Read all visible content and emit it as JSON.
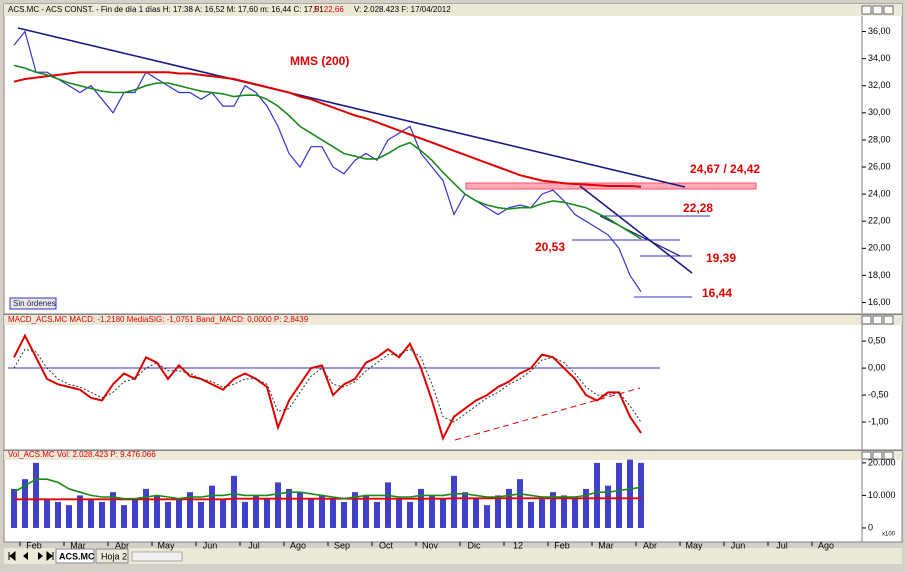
{
  "header": {
    "symbol_info": "ACS.MC - ACS CONST. - Fin de día 1 días  H: 17:38  A: 16,52  M: 17,60  m: 16,44  C: 17,51",
    "prev": "P: 22,66",
    "volume_date": "V: 2.028.423  F: 17/04/2012"
  },
  "chart_data": [
    {
      "type": "line",
      "title": "MMS (200)",
      "annotations": [
        "24,67 / 24,42",
        "22,28",
        "20,53",
        "19,39",
        "16,44"
      ],
      "ylim": [
        15.3,
        37
      ],
      "yticks": [
        {
          "value": 16,
          "label": "16,00"
        },
        {
          "value": 18,
          "label": "18,00"
        },
        {
          "value": 20,
          "label": "20,00"
        },
        {
          "value": 22,
          "label": "22,00"
        },
        {
          "value": 24,
          "label": "24,00"
        },
        {
          "value": 26,
          "label": "26,00"
        },
        {
          "value": 28,
          "label": "28,00"
        },
        {
          "value": 30,
          "label": "30,00"
        },
        {
          "value": 32,
          "label": "32,00"
        },
        {
          "value": 34,
          "label": "34,00"
        },
        {
          "value": 36,
          "label": "36,00"
        }
      ],
      "series": [
        {
          "color": "#3333cc",
          "width": 1.2,
          "values": [
            35,
            36,
            33,
            33,
            32.5,
            32,
            31.5,
            32,
            31,
            30,
            31.5,
            31.5,
            33,
            32.5,
            32,
            31.5,
            31.5,
            31,
            31.5,
            30.5,
            30.5,
            32,
            31.5,
            30.5,
            29,
            27,
            26,
            27.5,
            27.5,
            26,
            25.5,
            26.5,
            27,
            26.5,
            28,
            28.5,
            29,
            27,
            26,
            25,
            22.5,
            24,
            23.5,
            23,
            22.5,
            23,
            23.2,
            23,
            24,
            24.3,
            23.5,
            22.5,
            22,
            21.5,
            21,
            20,
            18,
            16.8
          ]
        },
        {
          "color": "#e00000",
          "width": 2,
          "values": [
            32.3,
            32.5,
            32.6,
            32.7,
            32.8,
            32.9,
            33,
            33,
            33,
            33,
            33,
            33,
            33,
            33,
            33,
            32.9,
            32.9,
            32.8,
            32.7,
            32.6,
            32.5,
            32.3,
            32.1,
            31.9,
            31.7,
            31.5,
            31.2,
            31,
            30.7,
            30.4,
            30.1,
            29.8,
            29.6,
            29.3,
            29,
            28.7,
            28.4,
            28.1,
            27.8,
            27.5,
            27.2,
            26.9,
            26.6,
            26.3,
            26,
            25.7,
            25.4,
            25.2,
            25,
            24.9,
            24.8,
            24.75,
            24.7,
            24.65,
            24.6,
            24.6,
            24.6,
            24.55
          ]
        },
        {
          "color": "#1a8a1a",
          "width": 1.6,
          "values": [
            33.5,
            33.3,
            33,
            32.8,
            32.5,
            32.2,
            32,
            31.8,
            31.6,
            31.5,
            31.5,
            31.7,
            32,
            32.2,
            32.2,
            32,
            31.8,
            31.6,
            31.5,
            31.4,
            31.2,
            31.3,
            31.3,
            31,
            30.5,
            29.8,
            29,
            28.5,
            28,
            27.5,
            27,
            26.8,
            26.6,
            26.6,
            27,
            27.5,
            27.8,
            27.2,
            26.5,
            25.6,
            24.8,
            24,
            23.5,
            23.2,
            23,
            22.9,
            23,
            23,
            23.3,
            23.5,
            23.4,
            23.2,
            23,
            22.6,
            22.2,
            21.7,
            21.2,
            20.7
          ]
        }
      ]
    },
    {
      "type": "line",
      "title": "MACD_ACS.MC  MACD: -1,2180  MediaSIG: -1,0751  Band_MACD: 0,0000  P: 2,8439",
      "ylim": [
        -1.48,
        0.78
      ],
      "yticks": [
        {
          "value": 0.5,
          "label": "0,50"
        },
        {
          "value": 0,
          "label": "0,00"
        },
        {
          "value": -0.5,
          "label": "-0,50"
        },
        {
          "value": -1,
          "label": "-1,00"
        }
      ],
      "series": [
        {
          "color": "#e00000",
          "width": 2,
          "values": [
            0.2,
            0.6,
            0.2,
            -0.2,
            -0.3,
            -0.35,
            -0.4,
            -0.55,
            -0.6,
            -0.3,
            -0.1,
            -0.2,
            0.2,
            0.1,
            -0.2,
            0.05,
            -0.15,
            -0.2,
            -0.3,
            -0.4,
            -0.2,
            -0.1,
            -0.2,
            -0.35,
            -1.1,
            -0.6,
            -0.3,
            0,
            0.05,
            -0.5,
            -0.3,
            -0.2,
            0.1,
            0.2,
            0.35,
            0.2,
            0.45,
            0,
            -0.6,
            -1.3,
            -0.9,
            -0.75,
            -0.6,
            -0.5,
            -0.35,
            -0.25,
            -0.1,
            0,
            0.25,
            0.2,
            0,
            -0.2,
            -0.5,
            -0.6,
            -0.45,
            -0.45,
            -0.9,
            -1.2
          ]
        },
        {
          "color": "#333333",
          "width": 1,
          "dash": true,
          "values": [
            0,
            0.35,
            0.3,
            0,
            -0.2,
            -0.3,
            -0.35,
            -0.45,
            -0.55,
            -0.45,
            -0.25,
            -0.2,
            0,
            0.1,
            -0.05,
            -0.05,
            -0.1,
            -0.2,
            -0.25,
            -0.35,
            -0.3,
            -0.2,
            -0.2,
            -0.3,
            -0.8,
            -0.75,
            -0.45,
            -0.15,
            0,
            -0.3,
            -0.35,
            -0.25,
            -0.05,
            0.1,
            0.25,
            0.25,
            0.35,
            0.2,
            -0.3,
            -0.9,
            -1,
            -0.85,
            -0.7,
            -0.55,
            -0.45,
            -0.3,
            -0.2,
            -0.05,
            0.15,
            0.2,
            0.1,
            -0.1,
            -0.35,
            -0.5,
            -0.5,
            -0.45,
            -0.7,
            -1
          ]
        }
      ]
    },
    {
      "type": "bar",
      "title": "Vol_ACS.MC  Vol: 2.028.423  P: 9.476.066",
      "categories": [
        "Feb",
        null,
        null,
        null,
        "Mar",
        null,
        null,
        null,
        "Abr",
        null,
        null,
        null,
        "May",
        null,
        null,
        null,
        "Jun",
        null,
        null,
        null,
        "Jul",
        null,
        null,
        null,
        "Ago",
        null,
        null,
        null,
        "Sep",
        null,
        null,
        null,
        "Oct",
        null,
        null,
        null,
        "Nov",
        null,
        null,
        null,
        "Dic",
        null,
        null,
        null,
        "12",
        null,
        null,
        null,
        "Feb",
        null,
        null,
        null,
        "Mar",
        null,
        null,
        null,
        "Abr",
        null,
        null,
        null,
        "May",
        null,
        null,
        null,
        "Jun",
        null,
        null,
        null,
        "Jul",
        null,
        null,
        null,
        "Ago",
        null,
        null,
        null
      ],
      "ylim": [
        -3700,
        21500
      ],
      "yticks": [
        {
          "value": 20000,
          "label": "20.000"
        },
        {
          "value": 10000,
          "label": "10.000"
        },
        0
      ],
      "scale_note": "x100",
      "series": [
        {
          "color": "#4040c8",
          "values": [
            12000,
            15000,
            20000,
            9000,
            8000,
            7000,
            10000,
            9000,
            8000,
            11000,
            7000,
            9000,
            12000,
            10000,
            8000,
            9000,
            11000,
            8000,
            13000,
            9000,
            16000,
            8000,
            10000,
            9000,
            14000,
            12000,
            11000,
            9000,
            10000,
            9000,
            8000,
            11000,
            10000,
            8000,
            14000,
            9000,
            8000,
            12000,
            10000,
            9000,
            16000,
            11000,
            9000,
            7000,
            10000,
            12000,
            15000,
            8000,
            9000,
            11000,
            10000,
            9000,
            12000,
            20000,
            13000,
            20000,
            21000,
            20000,
            null,
            null,
            null,
            null,
            null,
            null,
            null,
            null,
            null,
            null,
            null,
            null,
            null,
            null,
            null,
            null,
            null,
            null
          ]
        },
        {
          "type": "line",
          "color": "#e00000",
          "width": 1.8,
          "values": [
            8800,
            8800,
            8800,
            8800,
            8800,
            8800,
            8800,
            8800,
            8800,
            8800,
            8800,
            8800,
            8800,
            8800,
            8800,
            8800,
            8800,
            8800,
            8800,
            8800,
            9000,
            9000,
            9000,
            9000,
            9000,
            9000,
            9000,
            9000,
            9000,
            9000,
            9000,
            9000,
            9000,
            9000,
            9000,
            9000,
            9000,
            9000,
            9000,
            9000,
            9100,
            9100,
            9100,
            9100,
            9100,
            9100,
            9100,
            9100,
            9100,
            9100,
            9100,
            9100,
            9100,
            9100,
            9100,
            9100,
            9100,
            9100,
            null,
            null,
            null,
            null,
            null,
            null,
            null,
            null,
            null,
            null,
            null,
            null,
            null,
            null,
            null,
            null,
            null,
            null
          ]
        },
        {
          "type": "line",
          "color": "#1a8a1a",
          "width": 1.6,
          "values": [
            11000,
            13000,
            15000,
            15000,
            14000,
            12000,
            11000,
            10000,
            9500,
            9500,
            9000,
            9000,
            9500,
            10000,
            9500,
            9000,
            9500,
            9500,
            10000,
            10000,
            10500,
            10000,
            10000,
            10000,
            10500,
            11000,
            11000,
            10500,
            10000,
            9500,
            9000,
            9500,
            10000,
            10000,
            10000,
            9500,
            9500,
            10000,
            10000,
            10000,
            10500,
            10500,
            10000,
            9500,
            9500,
            10000,
            10500,
            10000,
            9500,
            9500,
            9500,
            9500,
            10000,
            11000,
            11000,
            11500,
            12000,
            12500,
            null,
            null,
            null,
            null,
            null,
            null,
            null,
            null,
            null,
            null,
            null,
            null,
            null,
            null,
            null,
            null,
            null,
            null
          ]
        }
      ]
    }
  ],
  "button": "Sin órdenes",
  "tabs": [
    "ACS.MC",
    "Hoja 2"
  ]
}
